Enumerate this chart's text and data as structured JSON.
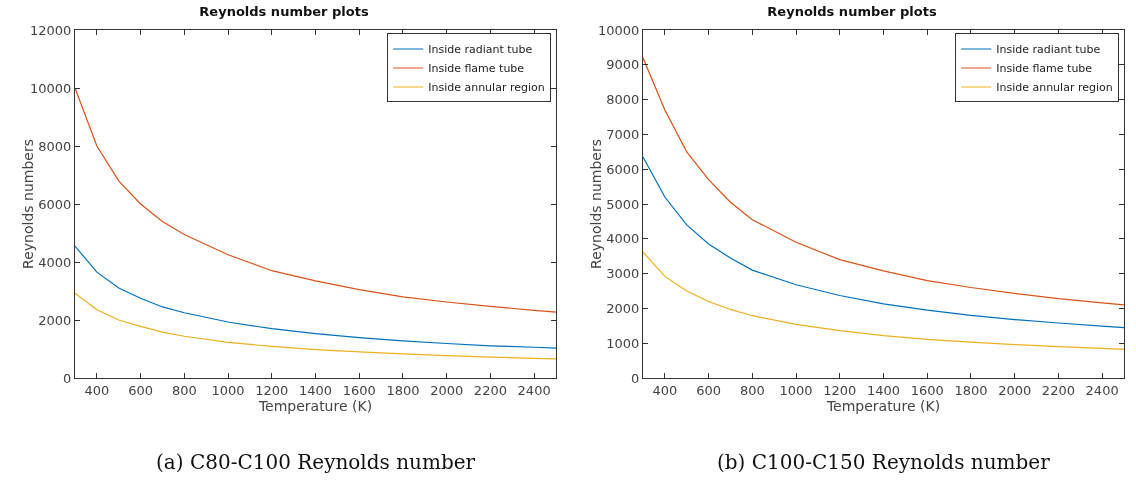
{
  "chart_data": [
    {
      "type": "line",
      "title": "Reynolds number plots",
      "xlabel": "Temperature (K)",
      "ylabel": "Reynolds numbers",
      "annotations": [
        "(a) C80-C100 Reynolds number"
      ],
      "x": [
        300,
        400,
        500,
        600,
        700,
        800,
        1000,
        1200,
        1400,
        1600,
        1800,
        2000,
        2200,
        2400,
        2500
      ],
      "xlim": [
        300,
        2500
      ],
      "xticks": [
        400,
        600,
        800,
        1000,
        1200,
        1400,
        1600,
        1800,
        2000,
        2200,
        2400
      ],
      "ylim": [
        0,
        12000
      ],
      "yticks": [
        0,
        2000,
        4000,
        6000,
        8000,
        10000,
        12000
      ],
      "grid": false,
      "legend": "top right",
      "marker": "none",
      "line_style": "solid",
      "series": [
        {
          "name": "Inside radiant tube",
          "color": "#0072bd",
          "values": [
            4550,
            3650,
            3100,
            2750,
            2450,
            2250,
            1930,
            1700,
            1530,
            1390,
            1280,
            1190,
            1110,
            1060,
            1030
          ]
        },
        {
          "name": "Inside flame tube",
          "color": "#d95319",
          "values": [
            10000,
            8000,
            6800,
            6000,
            5400,
            4950,
            4250,
            3700,
            3350,
            3050,
            2800,
            2620,
            2470,
            2330,
            2270
          ]
        },
        {
          "name": "Inside annular region",
          "color": "#edb120",
          "values": [
            2920,
            2350,
            2000,
            1780,
            1580,
            1440,
            1230,
            1090,
            980,
            900,
            830,
            770,
            720,
            680,
            660
          ]
        }
      ]
    },
    {
      "type": "line",
      "title": "Reynolds number plots",
      "xlabel": "Temperature (K)",
      "ylabel": "Reynolds numbers",
      "annotations": [
        "(b) C100-C150 Reynolds number"
      ],
      "x": [
        300,
        400,
        500,
        600,
        700,
        800,
        1000,
        1200,
        1400,
        1600,
        1800,
        2000,
        2200,
        2400,
        2500
      ],
      "xlim": [
        300,
        2500
      ],
      "xticks": [
        400,
        600,
        800,
        1000,
        1200,
        1400,
        1600,
        1800,
        2000,
        2200,
        2400
      ],
      "ylim": [
        0,
        10000
      ],
      "yticks": [
        0,
        1000,
        2000,
        3000,
        4000,
        5000,
        6000,
        7000,
        8000,
        9000,
        10000
      ],
      "grid": false,
      "legend": "top right",
      "marker": "none",
      "line_style": "solid",
      "series": [
        {
          "name": "Inside radiant tube",
          "color": "#0072bd",
          "values": [
            6350,
            5200,
            4400,
            3850,
            3450,
            3100,
            2680,
            2370,
            2130,
            1950,
            1800,
            1680,
            1580,
            1490,
            1450
          ]
        },
        {
          "name": "Inside flame tube",
          "color": "#d95319",
          "values": [
            9200,
            7700,
            6500,
            5700,
            5050,
            4550,
            3900,
            3400,
            3080,
            2800,
            2600,
            2430,
            2280,
            2160,
            2100
          ]
        },
        {
          "name": "Inside annular region",
          "color": "#edb120",
          "values": [
            3620,
            2920,
            2500,
            2200,
            1970,
            1790,
            1540,
            1360,
            1220,
            1110,
            1030,
            960,
            900,
            850,
            820
          ]
        }
      ]
    }
  ]
}
